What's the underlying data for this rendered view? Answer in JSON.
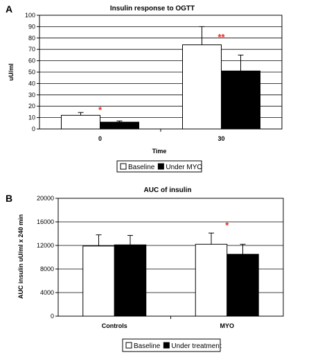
{
  "chart_data": [
    {
      "panel_letter": "A",
      "type": "bar",
      "title": "Insulin response to OGTT",
      "xlabel": "Time",
      "ylabel": "uU/ml",
      "ylim": [
        0,
        100
      ],
      "yticks": [
        0,
        10,
        20,
        30,
        40,
        50,
        60,
        70,
        80,
        90,
        100
      ],
      "grid": true,
      "legend_position": "bottom",
      "categories": [
        "0",
        "30"
      ],
      "series": [
        {
          "name": "Baseline",
          "color": "#ffffff",
          "values": [
            12,
            74
          ],
          "errors": [
            2.5,
            16
          ]
        },
        {
          "name": "Under MYO",
          "color": "#000000",
          "values": [
            6,
            51
          ],
          "errors": [
            1,
            14
          ]
        }
      ],
      "annotations": [
        {
          "text": "*",
          "category": 0,
          "y": 19,
          "color": "#e8281e"
        },
        {
          "text": "**",
          "category": 1,
          "y": 83,
          "color": "#e8281e"
        }
      ]
    },
    {
      "panel_letter": "B",
      "type": "bar",
      "title": "AUC of insulin",
      "xlabel": "",
      "ylabel": "AUC insulin uU/ml x 240 min",
      "ylim": [
        0,
        20000
      ],
      "yticks": [
        0,
        4000,
        8000,
        12000,
        16000,
        20000
      ],
      "grid": true,
      "legend_position": "bottom",
      "categories": [
        "Controls",
        "MYO"
      ],
      "series": [
        {
          "name": "Baseline",
          "color": "#ffffff",
          "values": [
            11900,
            12200
          ],
          "errors": [
            1900,
            1900
          ]
        },
        {
          "name": "Under treatment",
          "color": "#000000",
          "values": [
            12100,
            10500
          ],
          "errors": [
            1600,
            1700
          ]
        }
      ],
      "annotations": [
        {
          "text": "*",
          "category": 1,
          "y": 15800,
          "color": "#e8281e"
        }
      ]
    }
  ]
}
